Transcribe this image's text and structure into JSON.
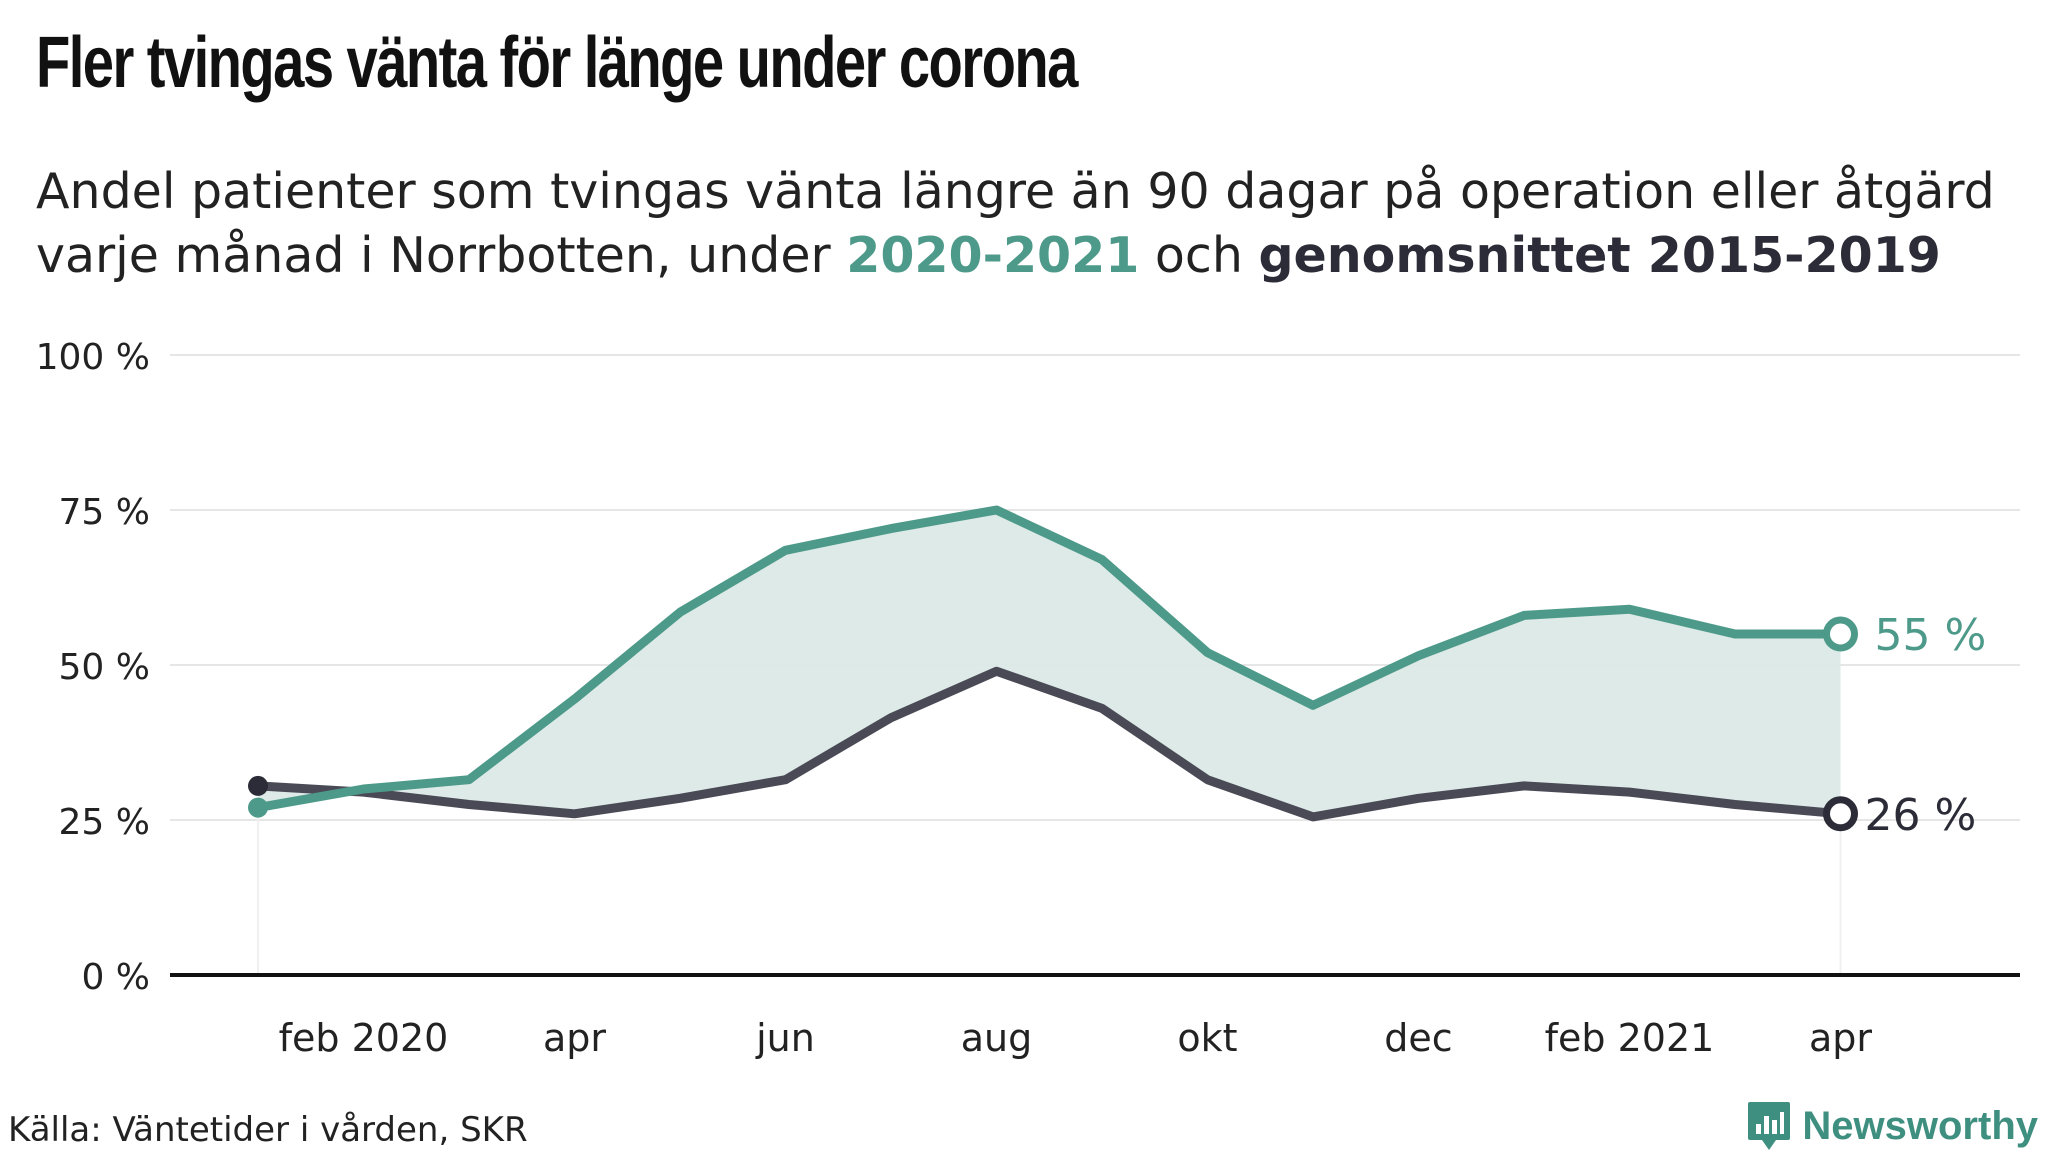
{
  "title": "Fler tvingas vänta för länge under corona",
  "subtitle": {
    "line1": "Andel patienter som tvingas vänta längre än 90 dagar på operation eller åtgärd",
    "line2_prefix": "varje månad i Norrbotten, under ",
    "highlight_a": "2020-2021",
    "line2_mid": " och ",
    "highlight_b": "genomsnittet 2015-2019"
  },
  "source": "Källa: Väntetider i vården, SKR",
  "brand": "Newsworthy",
  "colors": {
    "series_2020_2021": "#4e9a8a",
    "series_avg": "#4a4a56",
    "fill": "#dbe9e6",
    "axis": "#111111",
    "grid": "#e6e6e6"
  },
  "chart_data": {
    "type": "line",
    "x": [
      "2020-01",
      "2020-02",
      "2020-03",
      "2020-04",
      "2020-05",
      "2020-06",
      "2020-07",
      "2020-08",
      "2020-09",
      "2020-10",
      "2020-11",
      "2020-12",
      "2021-01",
      "2021-02",
      "2021-03",
      "2021-04"
    ],
    "x_tick_labels": [
      {
        "x": "2020-02",
        "label": "feb 2020"
      },
      {
        "x": "2020-04",
        "label": "apr"
      },
      {
        "x": "2020-06",
        "label": "jun"
      },
      {
        "x": "2020-08",
        "label": "aug"
      },
      {
        "x": "2020-10",
        "label": "okt"
      },
      {
        "x": "2020-12",
        "label": "dec"
      },
      {
        "x": "2021-02",
        "label": "feb 2021"
      },
      {
        "x": "2021-04",
        "label": "apr"
      }
    ],
    "y_ticks": [
      0,
      25,
      50,
      75,
      100
    ],
    "y_tick_labels": [
      "0 %",
      "25 %",
      "50 %",
      "75 %",
      "100 %"
    ],
    "ylim": [
      0,
      100
    ],
    "grid": true,
    "series": [
      {
        "name": "2020-2021",
        "values": [
          27,
          30,
          31.5,
          44.5,
          58.5,
          68.5,
          72,
          75,
          67,
          52,
          43.5,
          51.5,
          58,
          59,
          55,
          55
        ],
        "end_label": "55 %"
      },
      {
        "name": "genomsnittet 2015-2019",
        "values": [
          30.5,
          29.5,
          27.5,
          26,
          28.5,
          31.5,
          41.5,
          49,
          43,
          31.5,
          25.5,
          28.5,
          30.5,
          29.5,
          27.5,
          26
        ],
        "end_label": "26 %"
      }
    ]
  }
}
